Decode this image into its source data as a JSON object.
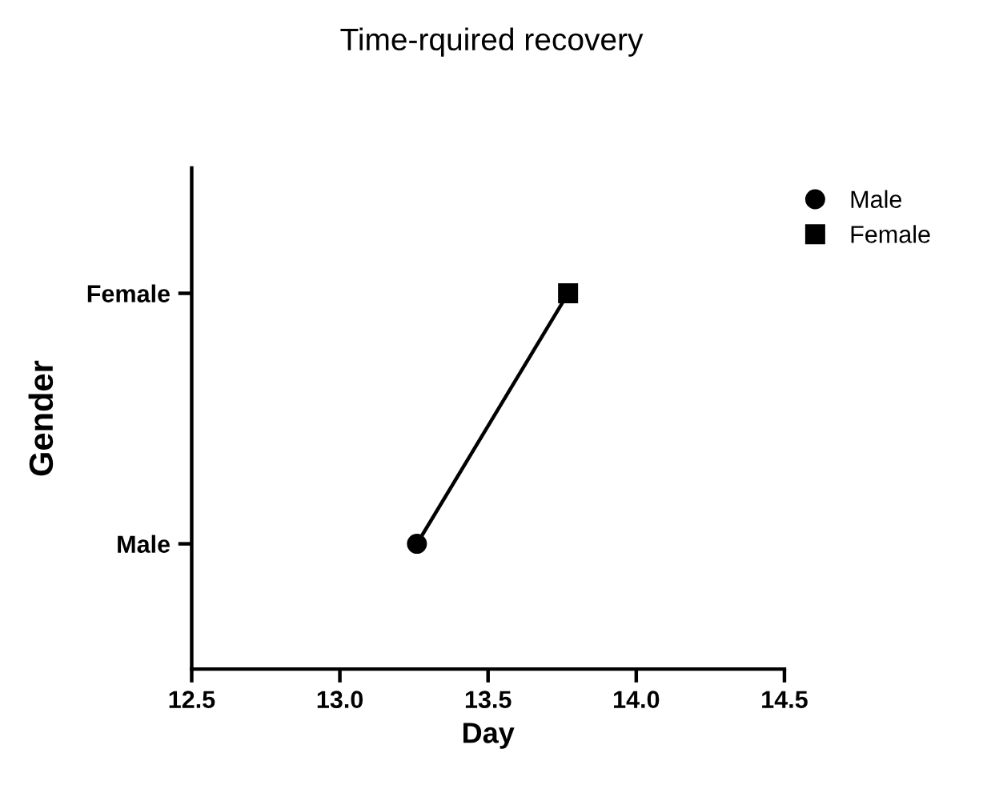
{
  "chart_data": {
    "type": "line",
    "title": "Time-rquired recovery",
    "xlabel": "Day",
    "ylabel": "Gender",
    "orientation": "horizontal",
    "categories": [
      "Female",
      "Male"
    ],
    "series": [
      {
        "color": "#000000",
        "values": [
          13.77,
          13.26
        ],
        "marker": "none"
      },
      {
        "type": "scatter",
        "name": "Male",
        "color": "#000000",
        "values": [
          null,
          13.26
        ],
        "marker": "circle"
      },
      {
        "type": "scatter",
        "name": "Female",
        "color": "#000000",
        "values": [
          13.77,
          null
        ],
        "marker": "square"
      }
    ],
    "xlim": [
      12.5,
      14.5
    ],
    "xticks": [
      12.5,
      {
        "value": 13,
        "label": "13.0"
      },
      13.5,
      {
        "value": 14,
        "label": "14.0"
      },
      14.5
    ],
    "grid": false,
    "legend": "top right"
  }
}
